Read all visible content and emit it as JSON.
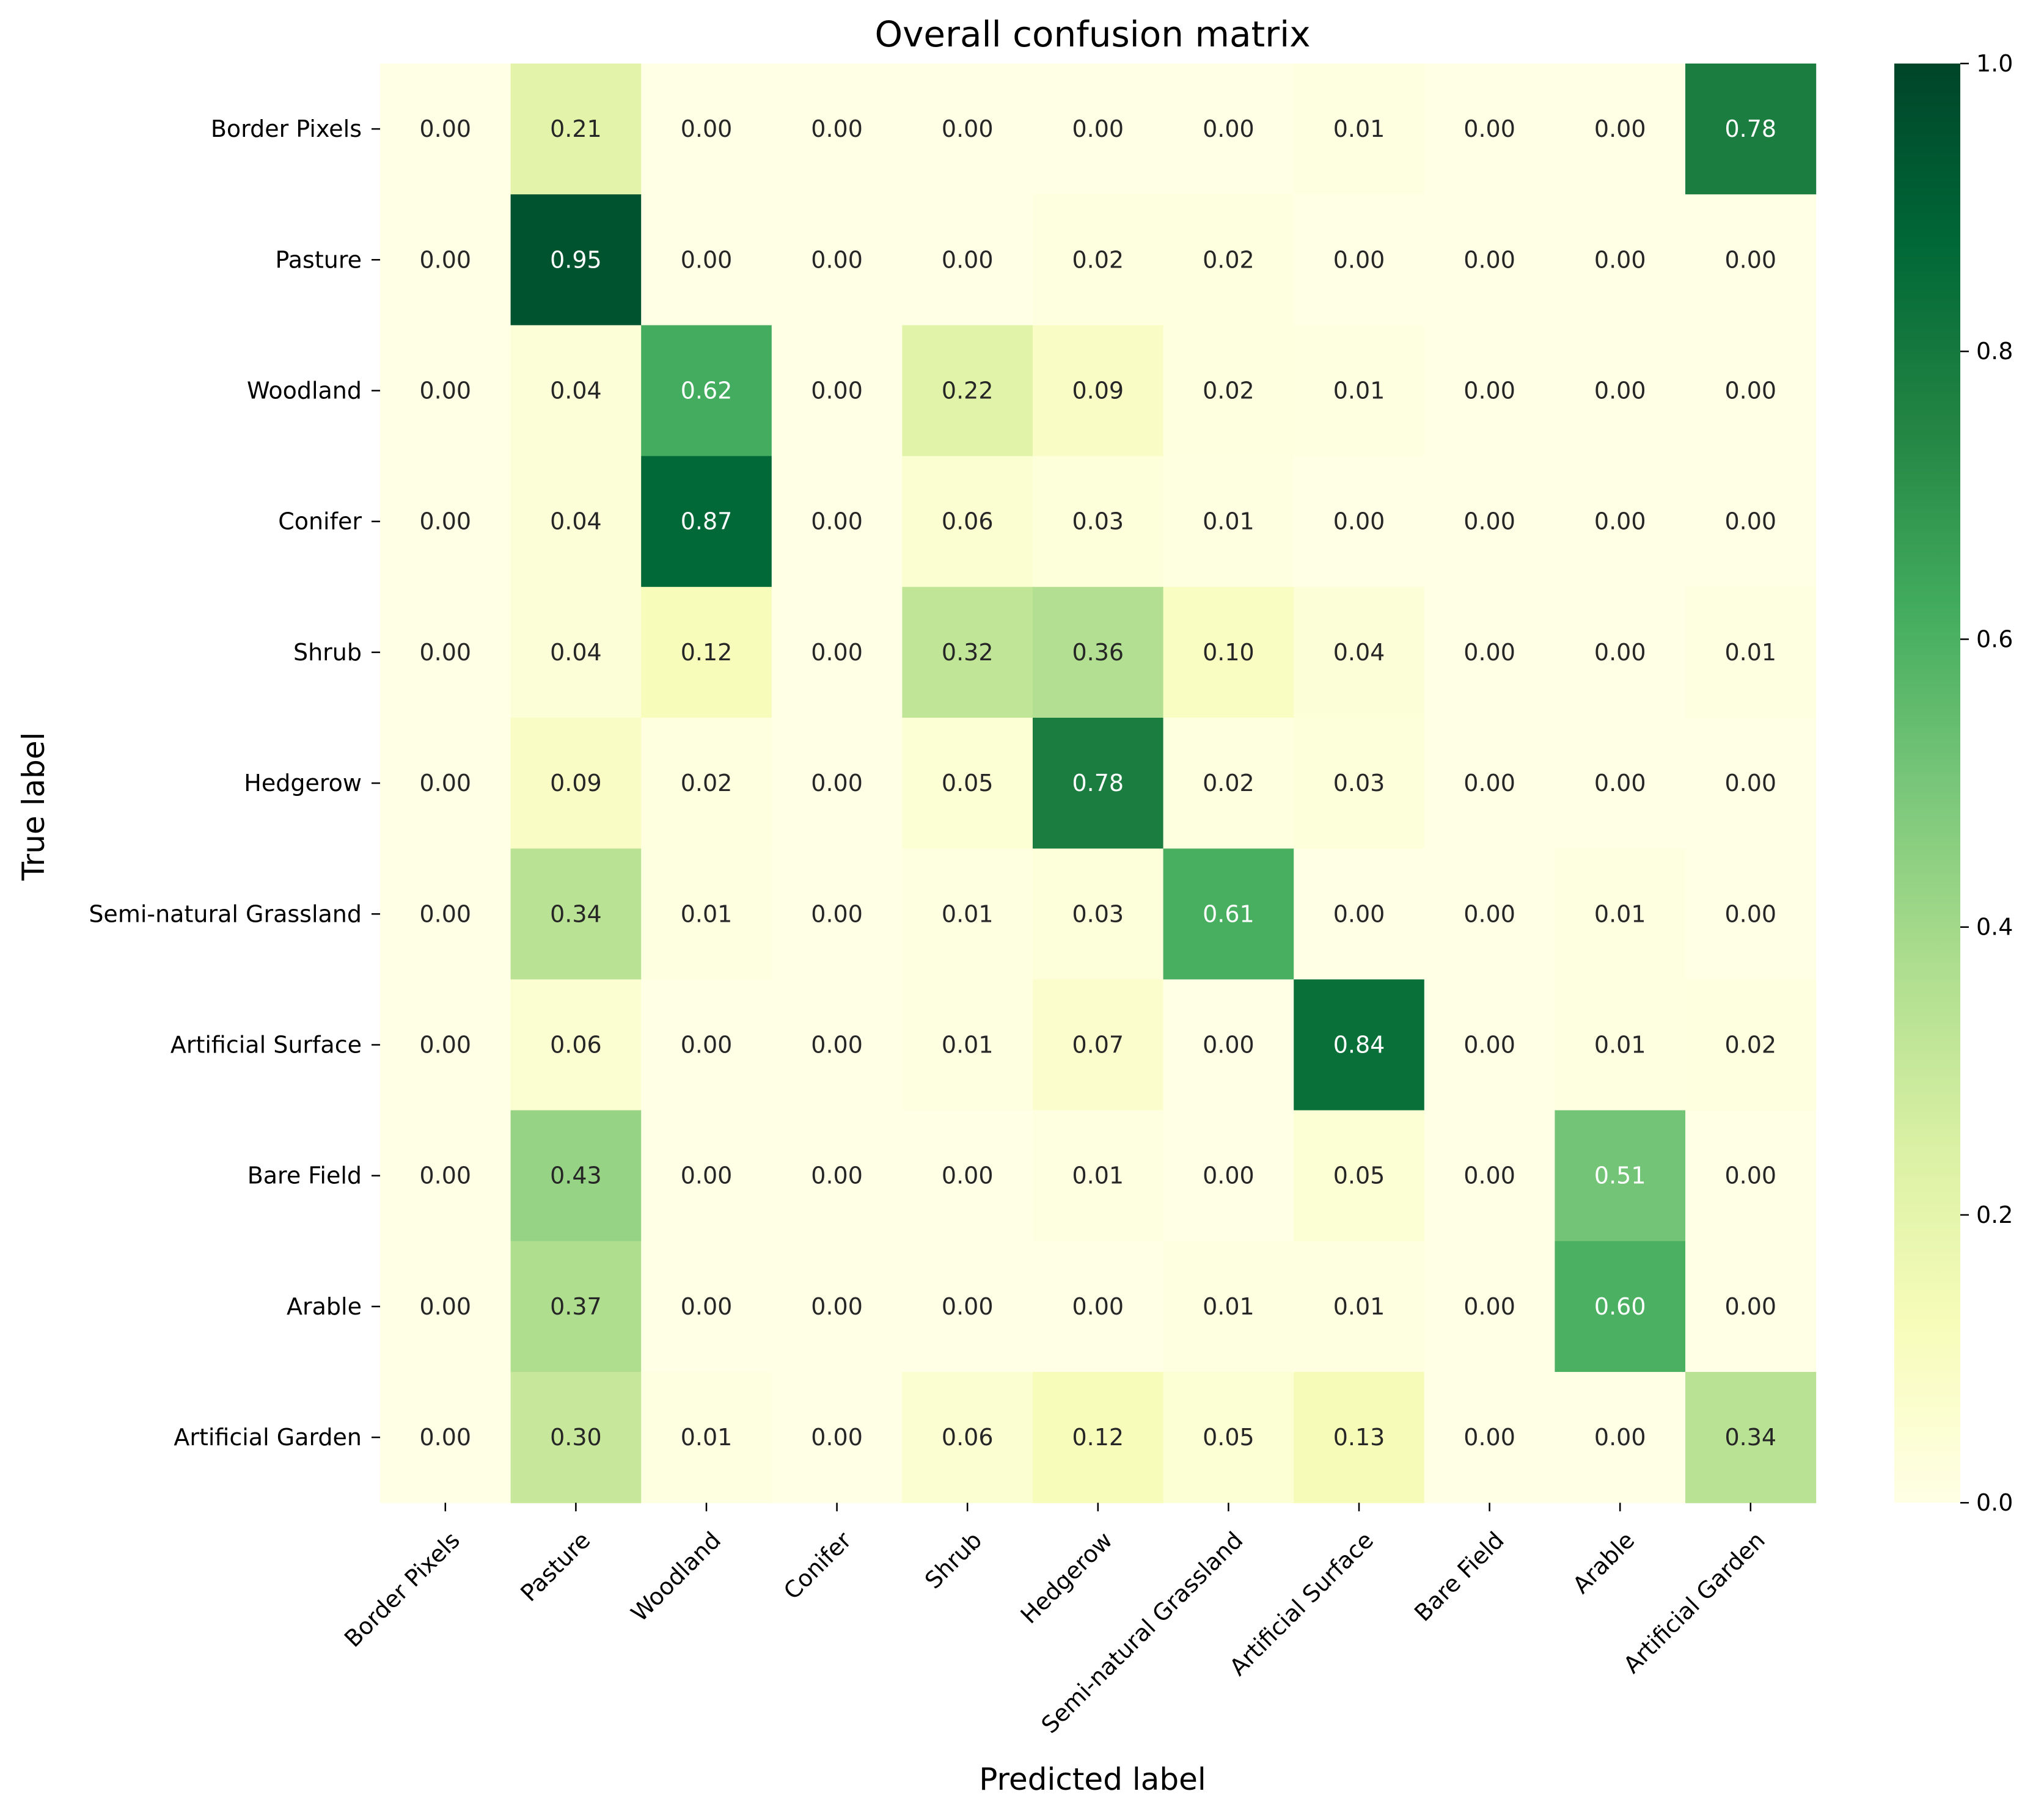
{
  "chart_data": {
    "type": "heatmap",
    "title": "Overall confusion matrix",
    "xlabel": "Predicted label",
    "ylabel": "True label",
    "x_categories": [
      "Border Pixels",
      "Pasture",
      "Woodland",
      "Conifer",
      "Shrub",
      "Hedgerow",
      "Semi-natural Grassland",
      "Artificial Surface",
      "Bare Field",
      "Arable",
      "Artificial Garden"
    ],
    "y_categories": [
      "Border Pixels",
      "Pasture",
      "Woodland",
      "Conifer",
      "Shrub",
      "Hedgerow",
      "Semi-natural Grassland",
      "Artificial Surface",
      "Bare Field",
      "Arable",
      "Artificial Garden"
    ],
    "values": [
      [
        0.0,
        0.21,
        0.0,
        0.0,
        0.0,
        0.0,
        0.0,
        0.01,
        0.0,
        0.0,
        0.78
      ],
      [
        0.0,
        0.95,
        0.0,
        0.0,
        0.0,
        0.02,
        0.02,
        0.0,
        0.0,
        0.0,
        0.0
      ],
      [
        0.0,
        0.04,
        0.62,
        0.0,
        0.22,
        0.09,
        0.02,
        0.01,
        0.0,
        0.0,
        0.0
      ],
      [
        0.0,
        0.04,
        0.87,
        0.0,
        0.06,
        0.03,
        0.01,
        0.0,
        0.0,
        0.0,
        0.0
      ],
      [
        0.0,
        0.04,
        0.12,
        0.0,
        0.32,
        0.36,
        0.1,
        0.04,
        0.0,
        0.0,
        0.01
      ],
      [
        0.0,
        0.09,
        0.02,
        0.0,
        0.05,
        0.78,
        0.02,
        0.03,
        0.0,
        0.0,
        0.0
      ],
      [
        0.0,
        0.34,
        0.01,
        0.0,
        0.01,
        0.03,
        0.61,
        0.0,
        0.0,
        0.01,
        0.0
      ],
      [
        0.0,
        0.06,
        0.0,
        0.0,
        0.01,
        0.07,
        0.0,
        0.84,
        0.0,
        0.01,
        0.02
      ],
      [
        0.0,
        0.43,
        0.0,
        0.0,
        0.0,
        0.01,
        0.0,
        0.05,
        0.0,
        0.51,
        0.0
      ],
      [
        0.0,
        0.37,
        0.0,
        0.0,
        0.0,
        0.0,
        0.01,
        0.01,
        0.0,
        0.6,
        0.0
      ],
      [
        0.0,
        0.3,
        0.01,
        0.0,
        0.06,
        0.12,
        0.05,
        0.13,
        0.0,
        0.0,
        0.34
      ]
    ],
    "value_format": "0.00",
    "colormap": "YlGn",
    "colormap_stops": [
      "#ffffe5",
      "#f7fcb9",
      "#d9f0a3",
      "#addd8e",
      "#78c679",
      "#41ab5d",
      "#238443",
      "#006837",
      "#004529"
    ],
    "vmin": 0.0,
    "vmax": 1.0,
    "colorbar_ticks": [
      "0.0",
      "0.2",
      "0.4",
      "0.6",
      "0.8",
      "1.0"
    ],
    "text_color_dark": "#262626",
    "text_color_light": "#ffffff",
    "grid": false
  }
}
